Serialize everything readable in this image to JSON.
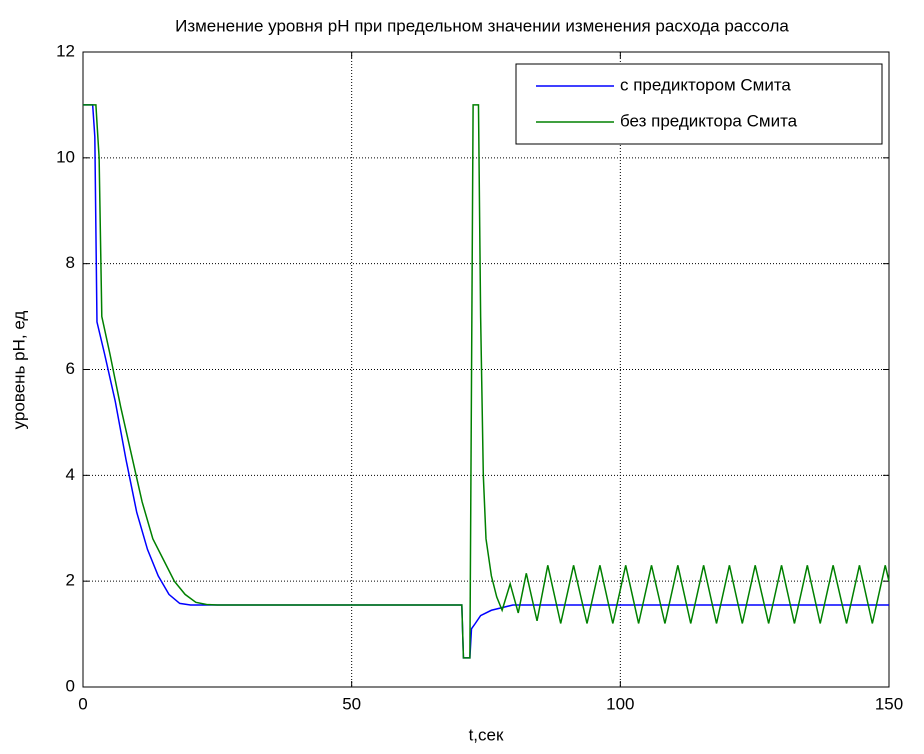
{
  "chart_data": {
    "type": "line",
    "title": "Изменение уровня pH при предельном значении изменения расхода рассола",
    "xlabel": "t,сек",
    "ylabel": "уровень pH, ед",
    "xlim": [
      0,
      150
    ],
    "xticks": [
      0,
      50,
      100,
      150
    ],
    "ylim": [
      0,
      12
    ],
    "yticks": [
      0,
      2,
      4,
      6,
      8,
      10,
      12
    ],
    "grid": true,
    "legend": "top-right",
    "series": [
      {
        "name": "с предиктором Смита",
        "color": "#0000ff",
        "x": [
          0,
          1.8,
          2.2,
          2.6,
          4,
          6,
          8,
          10,
          12,
          14,
          16,
          18,
          20,
          25,
          70.5,
          70.8,
          72,
          72.3,
          73,
          74,
          76,
          78,
          80,
          150
        ],
        "values": [
          11,
          11,
          10.4,
          6.9,
          6.3,
          5.4,
          4.3,
          3.3,
          2.6,
          2.1,
          1.75,
          1.58,
          1.55,
          1.55,
          1.55,
          0.55,
          0.55,
          1.1,
          1.2,
          1.35,
          1.45,
          1.5,
          1.55,
          1.55
        ]
      },
      {
        "name": "без предиктора Смита",
        "color": "#008000",
        "x": [
          0,
          2.4,
          3,
          3.5,
          5,
          7,
          9,
          11,
          13,
          15,
          17,
          19,
          21,
          23,
          25,
          70.5,
          70.8,
          72,
          72.6,
          73.6,
          74,
          74.5,
          75,
          76,
          77,
          78,
          79.5,
          81,
          82.5,
          84.5,
          86.5,
          88.9,
          91.3,
          93.8,
          96.2,
          98.6,
          101,
          103.4,
          105.8,
          108.3,
          110.7,
          113.1,
          115.5,
          117.9,
          120.3,
          122.7,
          125.1,
          127.6,
          130,
          132.4,
          134.8,
          137.2,
          139.6,
          142.1,
          144.5,
          146.9,
          149.3,
          150
        ],
        "values": [
          11,
          11,
          10,
          7,
          6.3,
          5.3,
          4.4,
          3.5,
          2.8,
          2.4,
          2.0,
          1.75,
          1.6,
          1.56,
          1.55,
          1.55,
          0.55,
          0.55,
          11,
          11,
          7,
          4,
          2.8,
          2.1,
          1.7,
          1.45,
          1.95,
          1.4,
          2.15,
          1.25,
          2.3,
          1.2,
          2.3,
          1.2,
          2.3,
          1.2,
          2.3,
          1.2,
          2.3,
          1.2,
          2.3,
          1.2,
          2.3,
          1.2,
          2.3,
          1.2,
          2.3,
          1.2,
          2.3,
          1.2,
          2.3,
          1.2,
          2.3,
          1.2,
          2.3,
          1.2,
          2.3,
          2.0
        ]
      }
    ]
  }
}
